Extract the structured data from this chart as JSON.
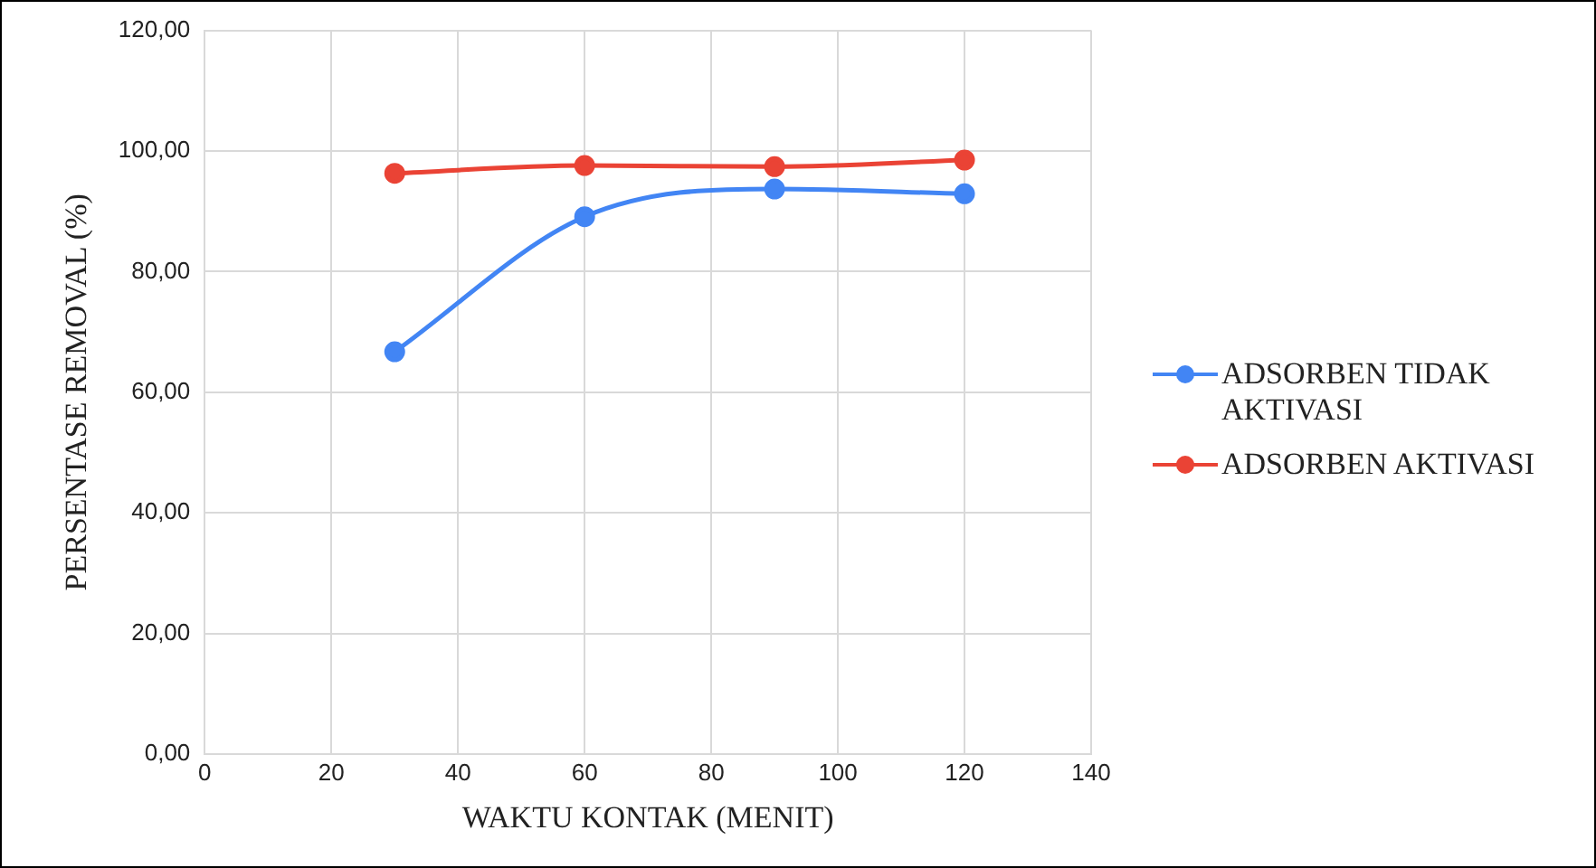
{
  "chart_data": {
    "type": "line",
    "xlabel": "WAKTU KONTAK (MENIT)",
    "ylabel": "PERSENTASE REMOVAL (%)",
    "x": [
      30,
      60,
      90,
      120
    ],
    "series": [
      {
        "name": "ADSORBEN TIDAK AKTIVASI",
        "color": "#4285f4",
        "values": [
          66.7,
          89.1,
          93.7,
          92.9
        ]
      },
      {
        "name": "ADSORBEN AKTIVASI",
        "color": "#ea4335",
        "values": [
          96.3,
          97.6,
          97.4,
          98.5
        ]
      }
    ],
    "xlim": [
      0,
      140
    ],
    "xticks": [
      0,
      20,
      40,
      60,
      80,
      100,
      120,
      140
    ],
    "ylim": [
      0,
      120
    ],
    "yticks": [
      {
        "value": 0,
        "label": "0,00"
      },
      {
        "value": 20,
        "label": "20,00"
      },
      {
        "value": 40,
        "label": "40,00"
      },
      {
        "value": 60,
        "label": "60,00"
      },
      {
        "value": 80,
        "label": "80,00"
      },
      {
        "value": 100,
        "label": "100,00"
      },
      {
        "value": 120,
        "label": "120,00"
      }
    ],
    "grid": true,
    "legend": "right",
    "marker": "circle",
    "line_style": "solid"
  }
}
